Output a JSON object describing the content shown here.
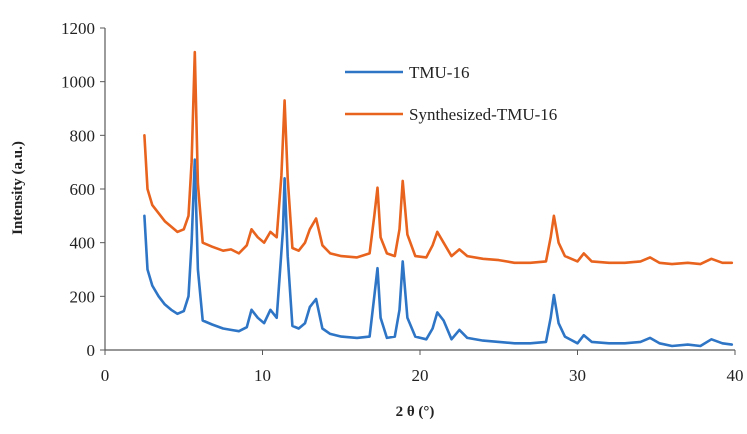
{
  "chart_data": {
    "type": "line",
    "title": "",
    "xlabel": "2 θ (°)",
    "ylabel": "Intensity (a.u.)",
    "xlim": [
      0,
      40
    ],
    "ylim": [
      0,
      1200
    ],
    "x_ticks": [
      "0",
      "10",
      "20",
      "30",
      "40"
    ],
    "y_ticks": [
      "0",
      "200",
      "400",
      "600",
      "800",
      "1000",
      "1200"
    ],
    "grid": false,
    "legend": "top-center",
    "series": [
      {
        "name": "TMU-16",
        "color": "#2e75c6",
        "points": [
          [
            2.5,
            500
          ],
          [
            2.7,
            300
          ],
          [
            3.0,
            240
          ],
          [
            3.4,
            200
          ],
          [
            3.8,
            170
          ],
          [
            4.2,
            150
          ],
          [
            4.6,
            135
          ],
          [
            5.0,
            145
          ],
          [
            5.3,
            200
          ],
          [
            5.5,
            400
          ],
          [
            5.7,
            710
          ],
          [
            5.9,
            300
          ],
          [
            6.2,
            110
          ],
          [
            6.8,
            95
          ],
          [
            7.5,
            80
          ],
          [
            8.0,
            75
          ],
          [
            8.5,
            70
          ],
          [
            9.0,
            85
          ],
          [
            9.3,
            150
          ],
          [
            9.7,
            120
          ],
          [
            10.1,
            100
          ],
          [
            10.5,
            150
          ],
          [
            10.9,
            120
          ],
          [
            11.3,
            450
          ],
          [
            11.4,
            640
          ],
          [
            11.6,
            350
          ],
          [
            11.9,
            90
          ],
          [
            12.3,
            80
          ],
          [
            12.7,
            100
          ],
          [
            13.0,
            160
          ],
          [
            13.4,
            190
          ],
          [
            13.8,
            80
          ],
          [
            14.3,
            60
          ],
          [
            15.0,
            50
          ],
          [
            16.0,
            45
          ],
          [
            16.8,
            50
          ],
          [
            17.1,
            200
          ],
          [
            17.3,
            305
          ],
          [
            17.5,
            120
          ],
          [
            17.9,
            45
          ],
          [
            18.4,
            50
          ],
          [
            18.7,
            150
          ],
          [
            18.9,
            330
          ],
          [
            19.2,
            120
          ],
          [
            19.7,
            50
          ],
          [
            20.4,
            40
          ],
          [
            20.8,
            80
          ],
          [
            21.1,
            140
          ],
          [
            21.5,
            110
          ],
          [
            22.0,
            40
          ],
          [
            22.5,
            75
          ],
          [
            23.0,
            45
          ],
          [
            24.0,
            35
          ],
          [
            25.0,
            30
          ],
          [
            26.0,
            25
          ],
          [
            27.0,
            25
          ],
          [
            28.0,
            30
          ],
          [
            28.3,
            120
          ],
          [
            28.5,
            205
          ],
          [
            28.8,
            100
          ],
          [
            29.2,
            50
          ],
          [
            30.0,
            25
          ],
          [
            30.4,
            55
          ],
          [
            30.9,
            30
          ],
          [
            32.0,
            25
          ],
          [
            33.0,
            25
          ],
          [
            34.0,
            30
          ],
          [
            34.6,
            45
          ],
          [
            35.2,
            25
          ],
          [
            36.0,
            15
          ],
          [
            37.0,
            20
          ],
          [
            37.8,
            15
          ],
          [
            38.5,
            40
          ],
          [
            39.2,
            25
          ],
          [
            39.8,
            20
          ]
        ]
      },
      {
        "name": "Synthesized-TMU-16",
        "color": "#e8631e",
        "points": [
          [
            2.5,
            800
          ],
          [
            2.7,
            600
          ],
          [
            3.0,
            540
          ],
          [
            3.4,
            510
          ],
          [
            3.8,
            480
          ],
          [
            4.2,
            460
          ],
          [
            4.6,
            440
          ],
          [
            5.0,
            450
          ],
          [
            5.3,
            500
          ],
          [
            5.5,
            700
          ],
          [
            5.7,
            1110
          ],
          [
            5.9,
            620
          ],
          [
            6.2,
            400
          ],
          [
            6.8,
            385
          ],
          [
            7.5,
            370
          ],
          [
            8.0,
            375
          ],
          [
            8.5,
            360
          ],
          [
            9.0,
            390
          ],
          [
            9.3,
            450
          ],
          [
            9.7,
            420
          ],
          [
            10.1,
            400
          ],
          [
            10.5,
            440
          ],
          [
            10.9,
            420
          ],
          [
            11.2,
            650
          ],
          [
            11.4,
            930
          ],
          [
            11.6,
            640
          ],
          [
            11.9,
            380
          ],
          [
            12.3,
            370
          ],
          [
            12.7,
            400
          ],
          [
            13.0,
            450
          ],
          [
            13.4,
            490
          ],
          [
            13.8,
            390
          ],
          [
            14.3,
            360
          ],
          [
            15.0,
            350
          ],
          [
            16.0,
            345
          ],
          [
            16.8,
            360
          ],
          [
            17.1,
            500
          ],
          [
            17.3,
            605
          ],
          [
            17.5,
            420
          ],
          [
            17.9,
            360
          ],
          [
            18.4,
            350
          ],
          [
            18.7,
            450
          ],
          [
            18.9,
            630
          ],
          [
            19.2,
            430
          ],
          [
            19.7,
            350
          ],
          [
            20.4,
            345
          ],
          [
            20.8,
            390
          ],
          [
            21.1,
            440
          ],
          [
            21.5,
            400
          ],
          [
            22.0,
            350
          ],
          [
            22.5,
            375
          ],
          [
            23.0,
            350
          ],
          [
            24.0,
            340
          ],
          [
            25.0,
            335
          ],
          [
            26.0,
            325
          ],
          [
            27.0,
            325
          ],
          [
            28.0,
            330
          ],
          [
            28.3,
            420
          ],
          [
            28.5,
            500
          ],
          [
            28.8,
            400
          ],
          [
            29.2,
            350
          ],
          [
            30.0,
            330
          ],
          [
            30.4,
            360
          ],
          [
            30.9,
            330
          ],
          [
            32.0,
            325
          ],
          [
            33.0,
            325
          ],
          [
            34.0,
            330
          ],
          [
            34.6,
            345
          ],
          [
            35.2,
            325
          ],
          [
            36.0,
            320
          ],
          [
            37.0,
            325
          ],
          [
            37.8,
            320
          ],
          [
            38.5,
            340
          ],
          [
            39.2,
            325
          ],
          [
            39.8,
            325
          ]
        ]
      }
    ]
  }
}
